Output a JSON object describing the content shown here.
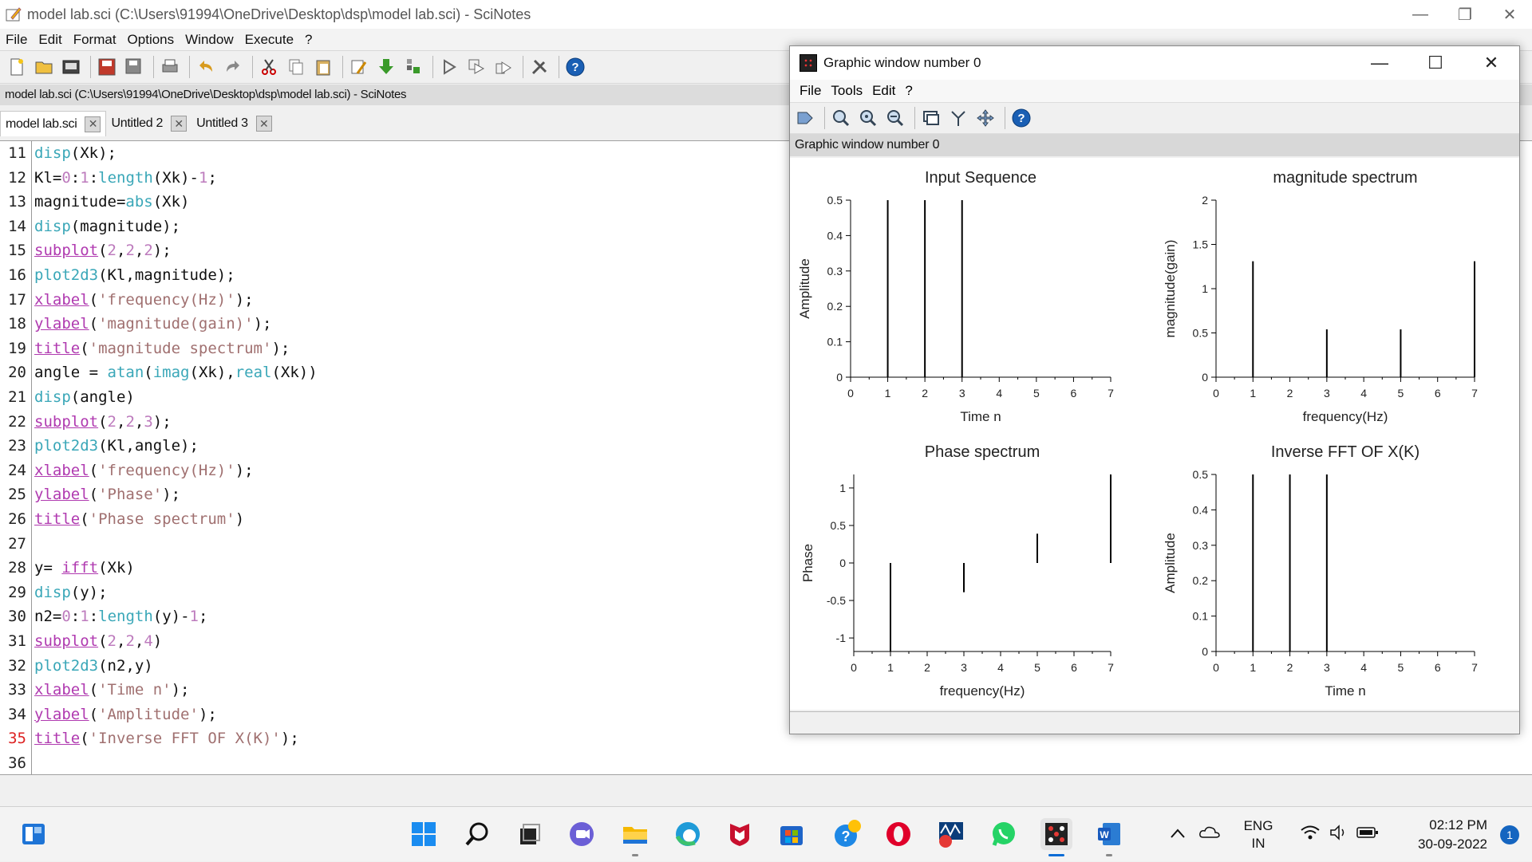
{
  "main_window": {
    "title": "model lab.sci (C:\\Users\\91994\\OneDrive\\Desktop\\dsp\\model lab.sci) - SciNotes",
    "menu": [
      "File",
      "Edit",
      "Format",
      "Options",
      "Window",
      "Execute",
      "?"
    ],
    "path_bar": "model lab.sci (C:\\Users\\91994\\OneDrive\\Desktop\\dsp\\model lab.sci) - SciNotes",
    "tabs": [
      {
        "label": "model lab.sci",
        "active": true
      },
      {
        "label": "Untitled 2",
        "active": false
      },
      {
        "label": "Untitled 3",
        "active": false
      }
    ],
    "code_lines": [
      {
        "n": "11",
        "text": "disp(Xk);"
      },
      {
        "n": "12",
        "text": "Kl=0:1:length(Xk)-1;"
      },
      {
        "n": "13",
        "text": "magnitude=abs(Xk)"
      },
      {
        "n": "14",
        "text": "disp(magnitude);"
      },
      {
        "n": "15",
        "text": "subplot(2,2,2);"
      },
      {
        "n": "16",
        "text": "plot2d3(Kl,magnitude);"
      },
      {
        "n": "17",
        "text": "xlabel('frequency(Hz)');"
      },
      {
        "n": "18",
        "text": "ylabel('magnitude(gain)');"
      },
      {
        "n": "19",
        "text": "title('magnitude spectrum');"
      },
      {
        "n": "20",
        "text": "angle = atan(imag(Xk),real(Xk))"
      },
      {
        "n": "21",
        "text": "disp(angle)"
      },
      {
        "n": "22",
        "text": "subplot(2,2,3);"
      },
      {
        "n": "23",
        "text": "plot2d3(Kl,angle);"
      },
      {
        "n": "24",
        "text": "xlabel('frequency(Hz)');"
      },
      {
        "n": "25",
        "text": "ylabel('Phase');"
      },
      {
        "n": "26",
        "text": "title('Phase spectrum')"
      },
      {
        "n": "27",
        "text": ""
      },
      {
        "n": "28",
        "text": "y= ifft(Xk)"
      },
      {
        "n": "29",
        "text": "disp(y);"
      },
      {
        "n": "30",
        "text": "n2=0:1:length(y)-1;"
      },
      {
        "n": "31",
        "text": "subplot(2,2,4)"
      },
      {
        "n": "32",
        "text": "plot2d3(n2,y)"
      },
      {
        "n": "33",
        "text": "xlabel('Time n');"
      },
      {
        "n": "34",
        "text": "ylabel('Amplitude');"
      },
      {
        "n": "35",
        "text": "title('Inverse FFT OF X(K)');"
      },
      {
        "n": "36",
        "text": ""
      }
    ],
    "current_line": "35"
  },
  "graphic_window": {
    "title": "Graphic window number 0",
    "menu": [
      "File",
      "Tools",
      "Edit",
      "?"
    ],
    "label": "Graphic window number 0"
  },
  "chart_data": [
    {
      "type": "bar",
      "title": "Input Sequence",
      "xlabel": "Time n",
      "ylabel": "Amplitude",
      "x": [
        0,
        1,
        2,
        3,
        4,
        5,
        6,
        7
      ],
      "values": [
        0,
        0.5,
        0.5,
        0.5,
        0,
        0,
        0,
        0
      ],
      "xlim": [
        0,
        7
      ],
      "ylim": [
        0,
        0.5
      ],
      "xticks": [
        "0",
        "1",
        "2",
        "3",
        "4",
        "5",
        "6",
        "7"
      ],
      "yticks": [
        "0",
        "0.1",
        "0.2",
        "0.3",
        "0.4",
        "0.5"
      ],
      "ytick_values": [
        0,
        0.1,
        0.2,
        0.3,
        0.4,
        0.5
      ]
    },
    {
      "type": "bar",
      "title": "magnitude spectrum",
      "xlabel": "frequency(Hz)",
      "ylabel": "magnitude(gain)",
      "x": [
        0,
        1,
        2,
        3,
        4,
        5,
        6,
        7
      ],
      "values": [
        0,
        1.31,
        0,
        0.54,
        0,
        0.54,
        0,
        1.31
      ],
      "xlim": [
        0,
        7
      ],
      "ylim": [
        0,
        2
      ],
      "xticks": [
        "0",
        "1",
        "2",
        "3",
        "4",
        "5",
        "6",
        "7"
      ],
      "yticks": [
        "0",
        "0.5",
        "1",
        "1.5",
        "2"
      ],
      "ytick_values": [
        0,
        0.5,
        1,
        1.5,
        2
      ]
    },
    {
      "type": "bar",
      "title": "Phase spectrum",
      "xlabel": "frequency(Hz)",
      "ylabel": "Phase",
      "x": [
        0,
        1,
        2,
        3,
        4,
        5,
        6,
        7
      ],
      "values": [
        0,
        -1.18,
        0,
        -0.39,
        0,
        0.39,
        0,
        1.18
      ],
      "xlim": [
        0,
        7
      ],
      "ylim": [
        -1.18,
        1.18
      ],
      "xticks": [
        "0",
        "1",
        "2",
        "3",
        "4",
        "5",
        "6",
        "7"
      ],
      "yticks": [
        "-1",
        "-0.5",
        "0",
        "0.5",
        "1"
      ],
      "ytick_values": [
        -1,
        -0.5,
        0,
        0.5,
        1
      ]
    },
    {
      "type": "bar",
      "title": "Inverse FFT OF X(K)",
      "xlabel": "Time n",
      "ylabel": "Amplitude",
      "x": [
        0,
        1,
        2,
        3,
        4,
        5,
        6,
        7
      ],
      "values": [
        0,
        0.5,
        0.5,
        0.5,
        0,
        0,
        0,
        0
      ],
      "xlim": [
        0,
        7
      ],
      "ylim": [
        0,
        0.5
      ],
      "xticks": [
        "0",
        "1",
        "2",
        "3",
        "4",
        "5",
        "6",
        "7"
      ],
      "yticks": [
        "0",
        "0.1",
        "0.2",
        "0.3",
        "0.4",
        "0.5"
      ],
      "ytick_values": [
        0,
        0.1,
        0.2,
        0.3,
        0.4,
        0.5
      ]
    }
  ],
  "taskbar": {
    "apps": [
      "start-icon",
      "search-icon",
      "task-view-icon",
      "teams-chat-icon",
      "file-explorer-icon",
      "edge-icon",
      "mcafee-icon",
      "store-icon",
      "get-help-icon",
      "opera-icon",
      "app-icon",
      "whatsapp-icon",
      "scilab-icon",
      "word-icon"
    ],
    "language": "ENG",
    "region": "IN",
    "time": "02:12 PM",
    "date": "30-09-2022",
    "notification_count": "1"
  }
}
